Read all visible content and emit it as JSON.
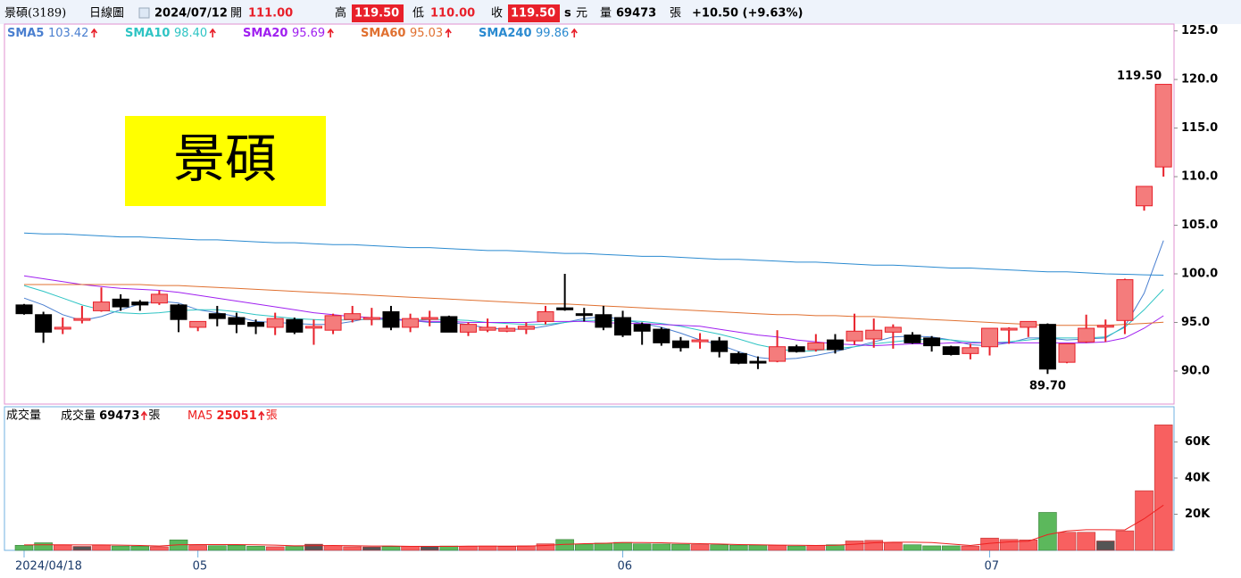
{
  "header": {
    "name": "景碩(3189)",
    "period": "日線圖",
    "date": "2024/07/12",
    "open_label": "開",
    "open": "111.00",
    "high_label": "高",
    "high": "119.50",
    "low_label": "低",
    "low": "110.00",
    "close_label": "收",
    "close": "119.50",
    "unit_s": "s",
    "unit": "元",
    "volume_label": "量",
    "volume": "69473",
    "volume_unit": "張",
    "change": "+10.50 (+9.63%)"
  },
  "chart_data": [
    {
      "type": "candlestick",
      "badge": "景碩",
      "categories": [
        "2024/04/18",
        null,
        null,
        null,
        null,
        null,
        null,
        null,
        null,
        "05",
        null,
        null,
        null,
        null,
        null,
        null,
        null,
        null,
        null,
        null,
        null,
        null,
        null,
        null,
        null,
        null,
        null,
        null,
        null,
        null,
        null,
        "06",
        null,
        null,
        null,
        null,
        null,
        null,
        null,
        null,
        null,
        null,
        null,
        null,
        null,
        null,
        null,
        null,
        null,
        null,
        "07",
        null,
        null,
        null,
        null,
        null,
        null,
        null,
        null,
        null
      ],
      "open": [
        96.8,
        95.8,
        94.4,
        95.4,
        96.2,
        97.4,
        97.1,
        97.0,
        96.8,
        94.5,
        95.9,
        95.5,
        95.0,
        94.5,
        95.3,
        94.6,
        94.2,
        95.3,
        95.5,
        96.1,
        94.5,
        95.5,
        95.6,
        94.0,
        94.2,
        94.1,
        94.3,
        95.1,
        96.5,
        95.9,
        95.8,
        95.5,
        94.8,
        94.3,
        93.1,
        93.1,
        93.1,
        91.8,
        91.0,
        91.0,
        92.5,
        92.2,
        93.2,
        93.1,
        93.3,
        94.0,
        93.7,
        93.4,
        92.5,
        91.8,
        92.5,
        94.3,
        94.5,
        94.8,
        90.9,
        93.0,
        94.7,
        95.2,
        107.0,
        111.0
      ],
      "high": [
        96.9,
        96.1,
        95.5,
        96.7,
        98.6,
        97.9,
        97.3,
        98.3,
        96.9,
        95.1,
        96.7,
        96.0,
        95.3,
        96.0,
        95.5,
        95.3,
        95.9,
        96.7,
        96.5,
        96.7,
        95.9,
        96.2,
        95.7,
        95.0,
        95.4,
        94.7,
        95.0,
        96.7,
        100.0,
        96.5,
        96.7,
        96.2,
        95.0,
        94.5,
        93.5,
        93.9,
        93.5,
        92.0,
        91.5,
        94.2,
        92.7,
        93.8,
        93.8,
        95.9,
        95.4,
        94.8,
        94.0,
        93.6,
        92.6,
        92.8,
        94.4,
        94.5,
        95.1,
        94.9,
        92.8,
        95.8,
        95.3,
        99.5,
        109.0,
        119.5
      ],
      "low": [
        95.8,
        92.9,
        93.8,
        94.9,
        96.1,
        96.2,
        96.2,
        96.8,
        94.0,
        94.1,
        94.6,
        93.9,
        93.8,
        93.7,
        93.8,
        92.7,
        93.8,
        95.0,
        94.7,
        94.2,
        94.0,
        94.6,
        94.0,
        93.6,
        94.0,
        94.0,
        93.8,
        94.8,
        96.2,
        95.1,
        94.2,
        93.5,
        92.7,
        92.6,
        92.0,
        92.3,
        91.4,
        90.7,
        90.2,
        90.9,
        91.9,
        92.0,
        91.8,
        92.7,
        92.4,
        92.3,
        92.8,
        92.0,
        91.6,
        91.2,
        91.6,
        92.8,
        93.5,
        89.7,
        90.8,
        92.9,
        93.0,
        93.8,
        106.5,
        110.0
      ],
      "close": [
        95.9,
        94.0,
        94.5,
        95.4,
        97.1,
        96.6,
        96.8,
        97.9,
        95.3,
        95.1,
        95.4,
        94.8,
        94.6,
        95.4,
        94.0,
        94.6,
        95.7,
        95.9,
        95.5,
        94.5,
        95.4,
        95.5,
        94.0,
        94.8,
        94.5,
        94.4,
        94.6,
        96.1,
        96.3,
        95.8,
        94.5,
        93.7,
        94.1,
        92.9,
        92.4,
        93.2,
        92.0,
        90.8,
        90.9,
        92.5,
        92.0,
        92.9,
        92.2,
        94.1,
        94.2,
        94.5,
        92.9,
        92.6,
        91.7,
        92.4,
        94.4,
        94.4,
        95.1,
        90.2,
        92.8,
        94.4,
        94.7,
        99.4,
        109.0,
        119.5
      ],
      "up_color": "#f47c7c",
      "up_edge": "#e8202a",
      "down_color": "#000000",
      "ylim": [
        86.6,
        125.7
      ],
      "yticks": [
        {
          "value": 90,
          "label": "90.0"
        },
        {
          "value": 95,
          "label": "95.0"
        },
        {
          "value": 100,
          "label": "100.0"
        },
        {
          "value": 105,
          "label": "105.0"
        },
        {
          "value": 110,
          "label": "110.0"
        },
        {
          "value": 115,
          "label": "115.0"
        },
        {
          "value": 120,
          "label": "120.0"
        },
        {
          "value": 125,
          "label": "125.0"
        }
      ],
      "annotations": {
        "max": "119.50",
        "min": "89.70"
      },
      "series": [
        {
          "name": "SMA5",
          "label": "103.42",
          "color": "#4a7fd0",
          "values": [
            97.5,
            96.8,
            95.8,
            95.2,
            95.6,
            96.3,
            96.9,
            97.2,
            97.0,
            96.3,
            96.0,
            95.6,
            95.1,
            95.0,
            94.9,
            94.8,
            94.8,
            95.1,
            95.5,
            95.4,
            95.2,
            95.0,
            95.0,
            94.8,
            94.4,
            94.3,
            94.3,
            94.6,
            95.0,
            95.4,
            95.6,
            95.3,
            94.9,
            94.5,
            93.9,
            93.2,
            92.7,
            92.0,
            91.4,
            91.2,
            91.3,
            91.6,
            92.0,
            92.5,
            93.0,
            93.5,
            93.6,
            93.5,
            93.2,
            92.7,
            92.6,
            92.9,
            93.4,
            93.4,
            93.2,
            93.3,
            93.4,
            94.6,
            98.0,
            103.42
          ]
        },
        {
          "name": "SMA10",
          "label": "98.40",
          "color": "#2ec4c4",
          "values": [
            98.8,
            98.2,
            97.5,
            96.8,
            96.3,
            96.0,
            95.9,
            96.0,
            96.2,
            96.3,
            96.3,
            96.1,
            95.8,
            95.6,
            95.4,
            95.3,
            95.2,
            95.3,
            95.3,
            95.3,
            95.2,
            95.3,
            95.3,
            95.2,
            95.0,
            94.9,
            94.8,
            94.8,
            95.0,
            95.2,
            95.2,
            95.2,
            95.1,
            94.9,
            94.6,
            94.2,
            93.8,
            93.3,
            92.7,
            92.3,
            92.0,
            92.1,
            92.3,
            92.5,
            92.8,
            93.0,
            93.2,
            93.3,
            93.2,
            93.0,
            92.9,
            93.0,
            93.2,
            93.4,
            93.4,
            93.4,
            93.5,
            94.5,
            96.3,
            98.4
          ]
        },
        {
          "name": "SMA20",
          "label": "95.69",
          "color": "#a020f0",
          "values": [
            99.8,
            99.5,
            99.2,
            98.9,
            98.7,
            98.5,
            98.4,
            98.3,
            98.1,
            97.8,
            97.5,
            97.2,
            96.9,
            96.6,
            96.3,
            96.0,
            95.8,
            95.6,
            95.5,
            95.3,
            95.2,
            95.1,
            95.1,
            95.0,
            95.0,
            95.0,
            95.0,
            95.1,
            95.1,
            95.1,
            95.0,
            94.9,
            94.9,
            94.8,
            94.7,
            94.6,
            94.3,
            94.0,
            93.7,
            93.5,
            93.2,
            93.0,
            92.8,
            92.7,
            92.6,
            92.7,
            92.8,
            92.8,
            92.9,
            92.9,
            92.9,
            92.9,
            92.9,
            92.9,
            92.9,
            92.9,
            93.0,
            93.4,
            94.4,
            95.69
          ]
        },
        {
          "name": "SMA60",
          "label": "95.03",
          "color": "#e07030",
          "values": [
            98.9,
            98.9,
            98.9,
            98.9,
            98.9,
            98.9,
            98.9,
            98.8,
            98.8,
            98.7,
            98.6,
            98.5,
            98.4,
            98.3,
            98.2,
            98.1,
            98.0,
            97.9,
            97.8,
            97.7,
            97.6,
            97.5,
            97.4,
            97.3,
            97.2,
            97.1,
            97.0,
            96.9,
            96.9,
            96.8,
            96.7,
            96.6,
            96.5,
            96.4,
            96.3,
            96.2,
            96.1,
            96.0,
            95.9,
            95.8,
            95.8,
            95.7,
            95.7,
            95.6,
            95.6,
            95.5,
            95.4,
            95.3,
            95.2,
            95.1,
            95.0,
            94.9,
            94.8,
            94.7,
            94.7,
            94.7,
            94.7,
            94.8,
            94.9,
            95.03
          ]
        },
        {
          "name": "SMA240",
          "label": "99.86",
          "color": "#2a8ad0",
          "values": [
            104.2,
            104.1,
            104.1,
            104.0,
            103.9,
            103.8,
            103.8,
            103.7,
            103.6,
            103.5,
            103.5,
            103.4,
            103.3,
            103.2,
            103.2,
            103.1,
            103.0,
            103.0,
            102.9,
            102.8,
            102.7,
            102.7,
            102.6,
            102.5,
            102.4,
            102.4,
            102.3,
            102.2,
            102.1,
            102.1,
            102.0,
            101.9,
            101.8,
            101.8,
            101.7,
            101.6,
            101.5,
            101.5,
            101.4,
            101.3,
            101.2,
            101.2,
            101.1,
            101.0,
            100.9,
            100.9,
            100.8,
            100.7,
            100.6,
            100.6,
            100.5,
            100.4,
            100.3,
            100.2,
            100.2,
            100.1,
            100.0,
            99.95,
            99.9,
            99.86
          ]
        }
      ]
    },
    {
      "type": "bar",
      "title": "成交量",
      "name": "成交量",
      "label": "69473",
      "unit": "張",
      "values": [
        2800,
        4200,
        3000,
        2200,
        2900,
        2400,
        2300,
        2000,
        5800,
        2700,
        2600,
        2800,
        2300,
        2000,
        2200,
        3400,
        2600,
        2000,
        1900,
        2100,
        2200,
        2200,
        2400,
        2300,
        2400,
        2100,
        2500,
        3600,
        6000,
        3500,
        4000,
        4400,
        3600,
        3500,
        3400,
        3200,
        3100,
        2900,
        2900,
        2800,
        2400,
        2700,
        3100,
        5200,
        5500,
        4300,
        3100,
        2500,
        2500,
        2400,
        6800,
        6000,
        5800,
        21000,
        10000,
        10000,
        5200,
        10800,
        33000,
        69473
      ],
      "up_color": "#f86060",
      "down_color": "#5cb85c",
      "flat_color": "#555555",
      "edge_color": "#c03030",
      "ylim": [
        0,
        78000
      ],
      "yticks": [
        {
          "value": 20000,
          "label": "20K"
        },
        {
          "value": 40000,
          "label": "40K"
        },
        {
          "value": 60000,
          "label": "60K"
        }
      ],
      "series": [
        {
          "name": "MA5",
          "label": "25051",
          "unit": "張",
          "color": "#ee2020",
          "values": [
            3000,
            3100,
            3100,
            3000,
            3000,
            2900,
            2700,
            2400,
            3100,
            3200,
            3200,
            3200,
            3100,
            2900,
            2500,
            2600,
            2700,
            2600,
            2400,
            2400,
            2200,
            2200,
            2200,
            2300,
            2300,
            2300,
            2300,
            2700,
            3300,
            3700,
            3900,
            4300,
            4300,
            4200,
            3900,
            3700,
            3500,
            3200,
            3100,
            2900,
            2800,
            2700,
            2800,
            3400,
            4200,
            4500,
            4500,
            4300,
            3500,
            2700,
            3900,
            4700,
            5100,
            8700,
            10700,
            11400,
            11400,
            11300,
            17500,
            25051
          ]
        }
      ]
    }
  ]
}
